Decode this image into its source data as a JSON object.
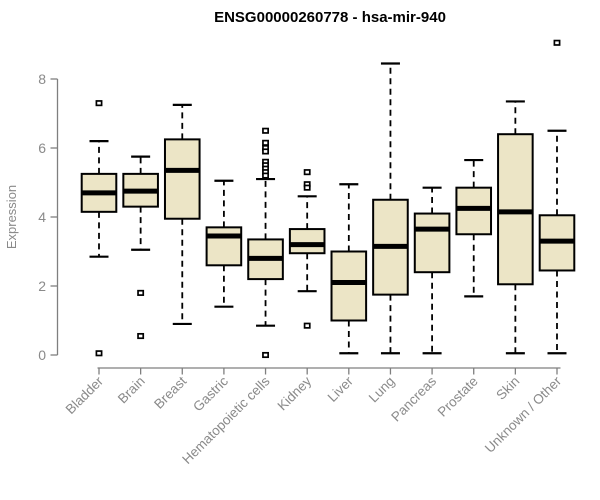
{
  "chart_data": {
    "type": "boxplot",
    "title": "ENSG00000260778 - hsa-mir-940",
    "xlabel": "",
    "ylabel": "Expression",
    "ylim": [
      0,
      8
    ],
    "yticks": [
      0,
      2,
      4,
      6,
      8
    ],
    "grid": false,
    "legend": false,
    "categories": [
      "Bladder",
      "Brain",
      "Breast",
      "Gastric",
      "Hematopoietic cells",
      "Kidney",
      "Liver",
      "Lung",
      "Pancreas",
      "Prostate",
      "Skin",
      "Unknown / Other"
    ],
    "boxes": [
      {
        "category": "Bladder",
        "whisker_low": 2.85,
        "q1": 4.15,
        "median": 4.7,
        "q3": 5.25,
        "whisker_high": 6.2,
        "outliers": [
          7.3,
          0.05
        ]
      },
      {
        "category": "Brain",
        "whisker_low": 3.05,
        "q1": 4.3,
        "median": 4.75,
        "q3": 5.25,
        "whisker_high": 5.75,
        "outliers": [
          1.8,
          0.55
        ]
      },
      {
        "category": "Breast",
        "whisker_low": 0.9,
        "q1": 3.95,
        "median": 5.35,
        "q3": 6.25,
        "whisker_high": 7.25,
        "outliers": []
      },
      {
        "category": "Gastric",
        "whisker_low": 1.4,
        "q1": 2.6,
        "median": 3.45,
        "q3": 3.7,
        "whisker_high": 5.05,
        "outliers": []
      },
      {
        "category": "Hematopoietic cells",
        "whisker_low": 0.85,
        "q1": 2.2,
        "median": 2.8,
        "q3": 3.35,
        "whisker_high": 5.1,
        "outliers": [
          6.5,
          6.15,
          6.0,
          5.9,
          5.6,
          5.5,
          5.4,
          5.3,
          5.2,
          0.0
        ]
      },
      {
        "category": "Kidney",
        "whisker_low": 1.85,
        "q1": 2.95,
        "median": 3.2,
        "q3": 3.65,
        "whisker_high": 4.6,
        "outliers": [
          5.3,
          4.95,
          4.85,
          0.85
        ]
      },
      {
        "category": "Liver",
        "whisker_low": 0.05,
        "q1": 1.0,
        "median": 2.1,
        "q3": 3.0,
        "whisker_high": 4.95,
        "outliers": []
      },
      {
        "category": "Lung",
        "whisker_low": 0.05,
        "q1": 1.75,
        "median": 3.15,
        "q3": 4.5,
        "whisker_high": 8.45,
        "outliers": []
      },
      {
        "category": "Pancreas",
        "whisker_low": 0.05,
        "q1": 2.4,
        "median": 3.65,
        "q3": 4.1,
        "whisker_high": 4.85,
        "outliers": []
      },
      {
        "category": "Prostate",
        "whisker_low": 1.7,
        "q1": 3.5,
        "median": 4.25,
        "q3": 4.85,
        "whisker_high": 5.65,
        "outliers": []
      },
      {
        "category": "Skin",
        "whisker_low": 0.05,
        "q1": 2.05,
        "median": 4.15,
        "q3": 6.4,
        "whisker_high": 7.35,
        "outliers": []
      },
      {
        "category": "Unknown / Other",
        "whisker_low": 0.05,
        "q1": 2.45,
        "median": 3.3,
        "q3": 4.05,
        "whisker_high": 6.5,
        "outliers": [
          9.05
        ]
      }
    ],
    "colors": {
      "box_fill": "#ece5c6",
      "box_border": "#000000",
      "median": "#000000",
      "whisker": "#000000",
      "outlier_fill": "#ffffff",
      "outlier_border": "#000000",
      "axis": "#7f7f7f",
      "tick_label": "#8a8a8a",
      "title": "#000000",
      "background": "#ffffff"
    }
  }
}
